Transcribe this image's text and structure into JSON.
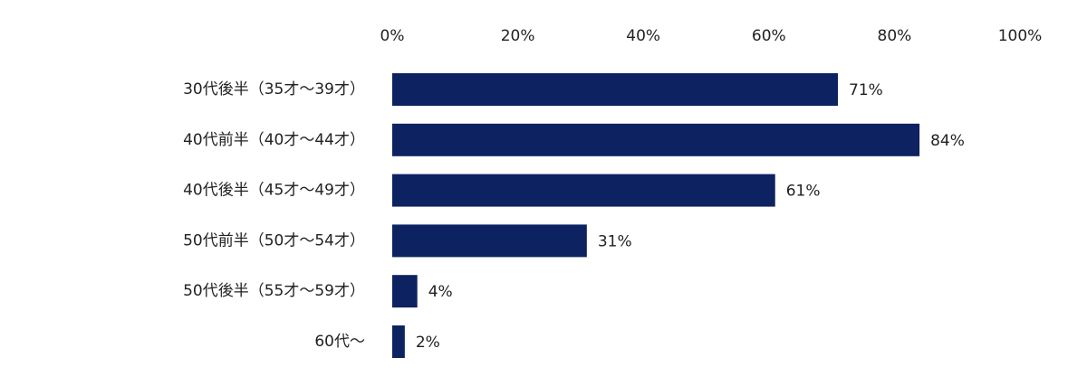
{
  "chart_data": {
    "type": "bar",
    "orientation": "horizontal",
    "categories": [
      "30代後半（35才～39才）",
      "40代前半（40才～44才）",
      "40代後半（45才～49才）",
      "50代前半（50才～54才）",
      "50代後半（55才～59才）",
      "60代～"
    ],
    "values": [
      71,
      84,
      61,
      31,
      4,
      2
    ],
    "value_labels": [
      "71%",
      "84%",
      "61%",
      "31%",
      "4%",
      "2%"
    ],
    "x_ticks": [
      "0%",
      "20%",
      "40%",
      "60%",
      "80%",
      "100%"
    ],
    "xlim": [
      0,
      100
    ],
    "x_axis_position": "top",
    "grid": false,
    "legend": "none",
    "bar_color": "#0d2260"
  }
}
